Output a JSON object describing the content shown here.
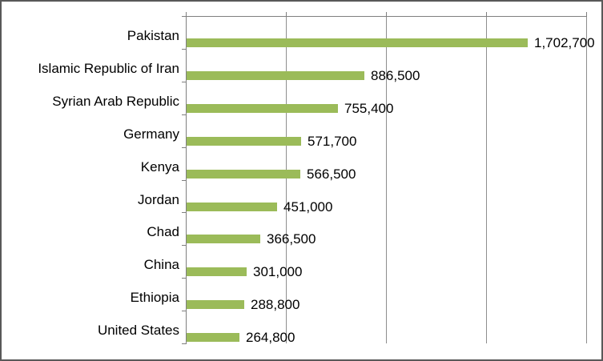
{
  "chart_data": {
    "type": "bar",
    "orientation": "horizontal",
    "title": "",
    "xlabel": "",
    "ylabel": "",
    "categories": [
      "Pakistan",
      "Islamic Republic of Iran",
      "Syrian Arab Republic",
      "Germany",
      "Kenya",
      "Jordan",
      "Chad",
      "China",
      "Ethiopia",
      "United States"
    ],
    "values": [
      1702700,
      886500,
      755400,
      571700,
      566500,
      451000,
      366500,
      301000,
      288800,
      264800
    ],
    "value_labels": [
      "1,702,700",
      "886,500",
      "755,400",
      "571,700",
      "566,500",
      "451,000",
      "366,500",
      "301,000",
      "288,800",
      "264,800"
    ],
    "xlim": [
      0,
      2000000
    ],
    "gridline_interval": 500000,
    "grid": true,
    "legend": "none",
    "axis_tick_labels_visible": false,
    "colors": {
      "bar": "#9BBB59",
      "axis": "#7F7F7F",
      "gridline": "#8E8E8E",
      "text": "#000000",
      "frame_border": "#595959"
    }
  }
}
